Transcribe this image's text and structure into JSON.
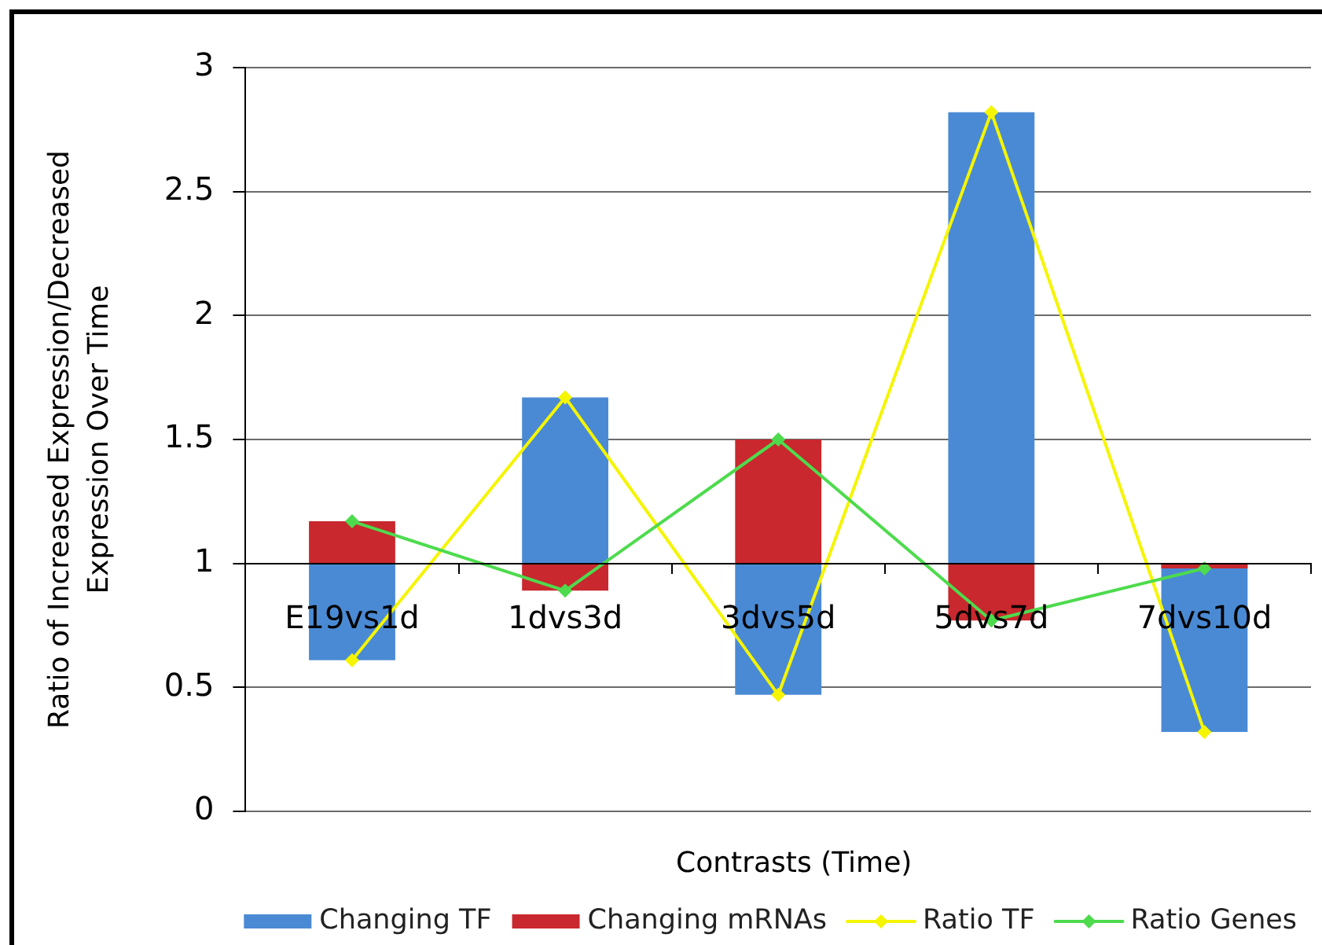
{
  "chart_data": {
    "type": "bar",
    "xlabel": "Contrasts (Time)",
    "ylabel": "Ratio of Increased Expression/Decreased Expression Over Time",
    "categories": [
      "E19vs1d",
      "1dvs3d",
      "3dvs5d",
      "5dvs7d",
      "7dvs10d"
    ],
    "series": [
      {
        "name": "Changing TF",
        "color": "#4a8ad4",
        "base": [
          1,
          1,
          1,
          1,
          1
        ],
        "values": [
          -0.39,
          0.67,
          -0.53,
          1.82,
          -0.68
        ]
      },
      {
        "name": "Changing mRNAs",
        "color": "#c8282e",
        "base": [
          1,
          1,
          1,
          1,
          1
        ],
        "values": [
          0.17,
          -0.11,
          0.5,
          -0.23,
          -0.02
        ]
      },
      {
        "name": "Ratio TF",
        "type": "line",
        "color": "#f5f500",
        "values": [
          0.61,
          1.67,
          0.47,
          2.82,
          0.32
        ]
      },
      {
        "name": "Ratio Genes",
        "type": "line",
        "color": "#4ddb4d",
        "values": [
          1.17,
          0.89,
          1.5,
          0.77,
          0.98
        ]
      }
    ],
    "ylim": [
      0,
      3
    ],
    "yticks": [
      0,
      0.5,
      1,
      1.5,
      2,
      2.5,
      3
    ],
    "grid": "y",
    "legend": "bottom",
    "marker": "diamond"
  }
}
